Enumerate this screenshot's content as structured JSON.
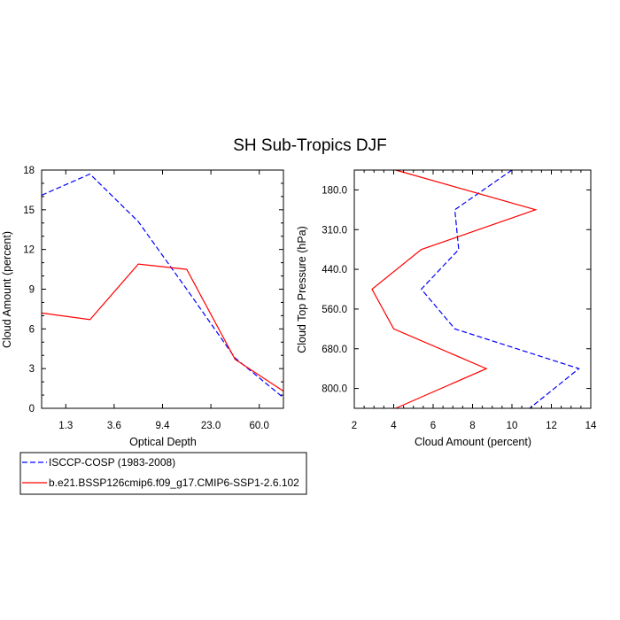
{
  "title": "SH Sub-Tropics DJF",
  "colors": {
    "obs": "#0000ff",
    "model": "#ff0000",
    "axis": "#000000"
  },
  "legend": {
    "placement": "bottom-left",
    "entries": [
      {
        "label": "ISCCP-COSP (1983-2008)",
        "color": "#0000ff",
        "dash": "dashed"
      },
      {
        "label": "b.e21.BSSP126cmip6.f09_g17.CMIP6-SSP1-2.6.102",
        "color": "#ff0000",
        "dash": "solid"
      }
    ]
  },
  "chart_data": [
    {
      "type": "line",
      "xlabel": "Optical Depth",
      "ylabel": "Cloud Amount (percent)",
      "x_tick_labels": [
        "1.3",
        "3.6",
        "9.4",
        "23.0",
        "60.0"
      ],
      "y_ticks": [
        0,
        3,
        6,
        9,
        12,
        15,
        18
      ],
      "ylim": [
        0,
        18
      ],
      "grid": false,
      "series": [
        {
          "name": "ISCCP-COSP (1983-2008)",
          "color": "#0000ff",
          "dash": "dashed",
          "values": [
            16.1,
            17.7,
            14.1,
            9.0,
            3.8,
            0.8
          ]
        },
        {
          "name": "b.e21.BSSP126cmip6.f09_g17.CMIP6-SSP1-2.6.102",
          "color": "#ff0000",
          "dash": "solid",
          "values": [
            7.2,
            6.7,
            10.9,
            10.5,
            3.7,
            1.3
          ]
        }
      ]
    },
    {
      "type": "line",
      "xlabel": "Cloud Amount (percent)",
      "ylabel": "Cloud Top Pressure (hPa)",
      "x_ticks": [
        2,
        4,
        6,
        8,
        10,
        12,
        14
      ],
      "xlim": [
        2,
        14
      ],
      "y_tick_labels": [
        "180.0",
        "310.0",
        "440.0",
        "560.0",
        "680.0",
        "800.0"
      ],
      "grid": false,
      "series": [
        {
          "name": "ISCCP-COSP (1983-2008)",
          "color": "#0000ff",
          "dash": "dashed",
          "values": [
            10.0,
            7.1,
            7.3,
            5.4,
            7.1,
            13.4,
            10.9
          ]
        },
        {
          "name": "b.e21.BSSP126cmip6.f09_g17.CMIP6-SSP1-2.6.102",
          "color": "#ff0000",
          "dash": "solid",
          "values": [
            4.1,
            11.2,
            5.4,
            2.9,
            4.0,
            8.7,
            4.1
          ]
        }
      ]
    }
  ]
}
